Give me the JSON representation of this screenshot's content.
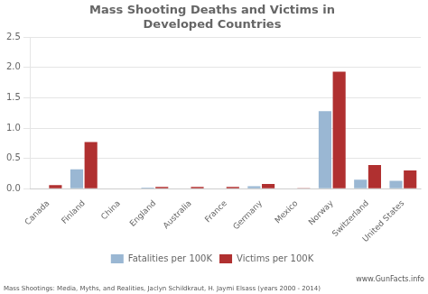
{
  "chart_data": {
    "type": "bar",
    "title": "Mass Shooting Deaths and Victims in\nDeveloped Countries",
    "categories": [
      "Canada",
      "Finland",
      "China",
      "England",
      "Australia",
      "France",
      "Germany",
      "Mexico",
      "Norway",
      "Switzerland",
      "United States"
    ],
    "series": [
      {
        "name": "Fatalities per 100K",
        "color": "#9ab7d3",
        "values": [
          0.0,
          0.32,
          0.0,
          0.02,
          0.0,
          0.0,
          0.04,
          0.0,
          1.28,
          0.15,
          0.13
        ]
      },
      {
        "name": "Victims per 100K",
        "color": "#b03030",
        "values": [
          0.06,
          0.77,
          0.0,
          0.03,
          0.03,
          0.03,
          0.08,
          0.01,
          1.93,
          0.39,
          0.3
        ]
      }
    ],
    "ylim": [
      0,
      2.5
    ],
    "yticks": [
      {
        "value": 0,
        "label": "0.0"
      },
      0.5,
      {
        "value": 1,
        "label": "1.0"
      },
      1.5,
      {
        "value": 2,
        "label": "2.0"
      },
      2.5
    ],
    "grid": true,
    "legend": "bottom",
    "annotations": [
      "Mass Shootings: Media, Myths, and Realities, Jaclyn Schildkraut, H. Jaymi Elsass (years 2000 - 2014)",
      "www.GunFacts.info"
    ]
  }
}
